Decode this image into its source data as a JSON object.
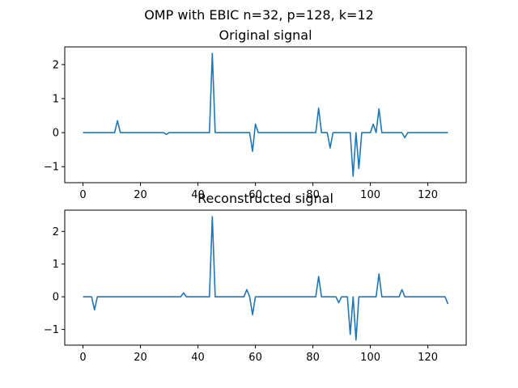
{
  "figure": {
    "suptitle": "OMP with EBIC n=32, p=128, k=12",
    "line_color": "#1f77b4"
  },
  "chart_data": [
    {
      "type": "line",
      "title": "Original signal",
      "xlabel": "",
      "ylabel": "",
      "xlim": [
        -6.35,
        133.35
      ],
      "ylim": [
        -1.47,
        2.52
      ],
      "xticks": [
        0,
        20,
        40,
        60,
        80,
        100,
        120
      ],
      "yticks": [
        -1,
        0,
        1,
        2
      ],
      "grid": false,
      "series": [
        {
          "x": [
            0,
            11,
            12,
            13,
            28,
            29,
            30,
            44,
            45,
            46,
            58,
            59,
            60,
            61,
            62,
            81,
            82,
            83,
            85,
            86,
            87,
            93,
            94,
            95,
            96,
            97,
            100,
            101,
            102,
            103,
            104,
            111,
            112,
            113,
            127
          ],
          "values": [
            0,
            0,
            0.35,
            0,
            0,
            -0.05,
            0,
            0,
            2.33,
            0,
            0,
            -0.55,
            0.25,
            0,
            0,
            0,
            0.72,
            0,
            0,
            -0.45,
            0,
            0,
            -1.28,
            0,
            -1.05,
            0,
            0,
            0.25,
            0,
            0.7,
            0,
            0,
            -0.15,
            0,
            0
          ]
        }
      ]
    },
    {
      "type": "line",
      "title": "Reconstructed signal",
      "xlabel": "",
      "ylabel": "",
      "xlim": [
        -6.35,
        133.35
      ],
      "ylim": [
        -1.48,
        2.65
      ],
      "xticks": [
        0,
        20,
        40,
        60,
        80,
        100,
        120
      ],
      "yticks": [
        -1,
        0,
        1,
        2
      ],
      "grid": false,
      "series": [
        {
          "x": [
            0,
            3,
            4,
            5,
            34,
            35,
            36,
            44,
            45,
            46,
            56,
            57,
            58,
            59,
            60,
            81,
            82,
            83,
            88,
            89,
            90,
            92,
            93,
            94,
            95,
            96,
            97,
            102,
            103,
            104,
            110,
            111,
            112,
            126,
            127
          ],
          "values": [
            0,
            0,
            -0.4,
            0,
            0,
            0.12,
            0,
            0,
            2.45,
            0,
            0,
            0.22,
            0,
            -0.55,
            0,
            0,
            0.62,
            0,
            0,
            -0.18,
            0,
            0,
            -1.15,
            0,
            -1.32,
            0,
            0,
            0,
            0.7,
            0,
            0,
            0.22,
            0,
            0,
            -0.22
          ]
        }
      ]
    }
  ]
}
